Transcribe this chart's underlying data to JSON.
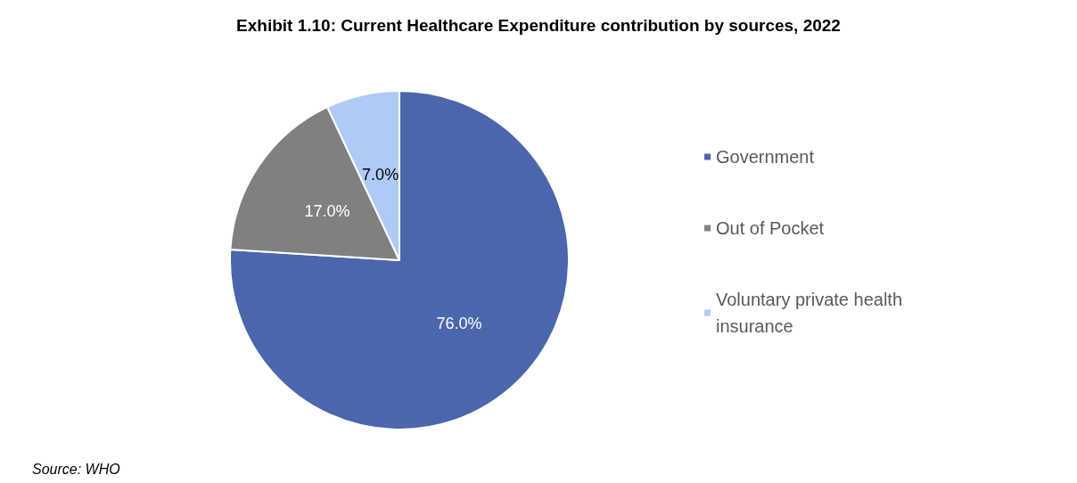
{
  "chart_data": {
    "type": "pie",
    "title": "Exhibit 1.10: Current Healthcare Expenditure contribution by sources, 2022",
    "categories": [
      "Government",
      "Out of Pocket",
      "Voluntary private health insurance"
    ],
    "values": [
      76.0,
      17.0,
      7.0
    ],
    "colors": [
      "#4a66ac",
      "#808080",
      "#afcbf5"
    ],
    "value_labels": [
      "76.0%",
      "17.0%",
      "7.0%"
    ],
    "legend": "right",
    "annotations": [
      "Source: WHO"
    ]
  }
}
